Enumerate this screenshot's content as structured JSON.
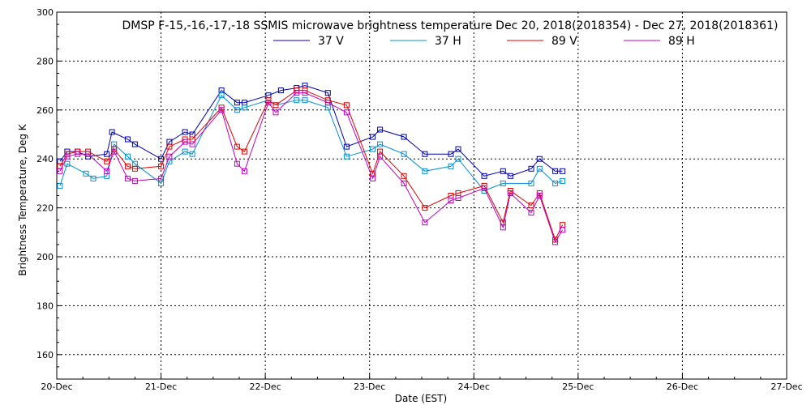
{
  "chart_data": {
    "type": "line",
    "title": "DMSP F-15,-16,-17,-18 SSMIS microwave brightness temperature Dec 20, 2018(2018354) - Dec 27, 2018(2018361)",
    "xlabel": "Date (EST)",
    "ylabel": "Brightness Temperature, Deg K",
    "xlim": [
      0,
      7
    ],
    "ylim": [
      150,
      300
    ],
    "x_ticks": [
      {
        "value": 0,
        "label": "20-Dec"
      },
      {
        "value": 1,
        "label": "21-Dec"
      },
      {
        "value": 2,
        "label": "22-Dec"
      },
      {
        "value": 3,
        "label": "23-Dec"
      },
      {
        "value": 4,
        "label": "24-Dec"
      },
      {
        "value": 5,
        "label": "25-Dec"
      },
      {
        "value": 6,
        "label": "26-Dec"
      },
      {
        "value": 7,
        "label": "27-Dec"
      }
    ],
    "y_ticks": [
      160,
      180,
      200,
      220,
      240,
      260,
      280,
      300
    ],
    "y_tick_labels": [
      "160",
      "180",
      "200",
      "220",
      "240",
      "260",
      "280",
      "300"
    ],
    "grid": true,
    "legend_position": "top",
    "series": [
      {
        "name": "37 V",
        "color": "#0000b0",
        "x": [
          0.03,
          0.1,
          0.2,
          0.3,
          0.48,
          0.53,
          0.68,
          0.75,
          1.0,
          1.08,
          1.23,
          1.3,
          1.58,
          1.73,
          1.8,
          2.03,
          2.15,
          2.3,
          2.38,
          2.6,
          2.78,
          3.03,
          3.1,
          3.33,
          3.53,
          3.78,
          3.85,
          4.1,
          4.28,
          4.35,
          4.55,
          4.63,
          4.78,
          4.85
        ],
        "y": [
          239,
          243,
          243,
          241,
          242,
          251,
          248,
          246,
          240,
          247,
          251,
          250,
          268,
          263,
          263,
          266,
          268,
          269,
          270,
          267,
          245,
          249,
          252,
          249,
          242,
          242,
          244,
          233,
          235,
          233,
          236,
          240,
          235,
          235
        ]
      },
      {
        "name": "37 H",
        "color": "#0090d0",
        "x": [
          0.03,
          0.1,
          0.28,
          0.35,
          0.48,
          0.55,
          0.68,
          0.75,
          1.0,
          1.08,
          1.23,
          1.3,
          1.58,
          1.73,
          1.8,
          2.03,
          2.1,
          2.3,
          2.38,
          2.6,
          2.78,
          3.03,
          3.1,
          3.33,
          3.53,
          3.78,
          3.85,
          4.1,
          4.28,
          4.55,
          4.63,
          4.78,
          4.85
        ],
        "y": [
          229,
          238,
          234,
          232,
          233,
          246,
          241,
          238,
          230,
          239,
          243,
          242,
          266,
          260,
          261,
          264,
          262,
          264,
          264,
          261,
          241,
          244,
          246,
          242,
          235,
          237,
          240,
          227,
          230,
          230,
          236,
          230,
          231
        ]
      },
      {
        "name": "89 V",
        "color": "#e00000",
        "x": [
          0.03,
          0.1,
          0.2,
          0.3,
          0.48,
          0.55,
          0.68,
          0.75,
          1.0,
          1.08,
          1.23,
          1.3,
          1.58,
          1.73,
          1.8,
          2.03,
          2.1,
          2.3,
          2.38,
          2.6,
          2.78,
          3.03,
          3.1,
          3.33,
          3.53,
          3.78,
          3.85,
          4.1,
          4.28,
          4.35,
          4.55,
          4.63,
          4.78,
          4.85
        ],
        "y": [
          237,
          242,
          243,
          243,
          239,
          244,
          237,
          236,
          237,
          245,
          248,
          248,
          261,
          245,
          243,
          264,
          262,
          268,
          268,
          264,
          262,
          234,
          243,
          233,
          220,
          225,
          226,
          229,
          214,
          227,
          221,
          226,
          207,
          213
        ]
      },
      {
        "name": "89 H",
        "color": "#c000c0",
        "x": [
          0.03,
          0.1,
          0.2,
          0.3,
          0.48,
          0.55,
          0.68,
          0.75,
          1.0,
          1.08,
          1.23,
          1.3,
          1.58,
          1.73,
          1.8,
          2.03,
          2.1,
          2.3,
          2.38,
          2.6,
          2.78,
          3.03,
          3.1,
          3.33,
          3.53,
          3.78,
          3.85,
          4.1,
          4.28,
          4.35,
          4.55,
          4.63,
          4.78,
          4.85
        ],
        "y": [
          235,
          241,
          242,
          242,
          235,
          243,
          232,
          231,
          232,
          241,
          247,
          246,
          260,
          238,
          235,
          263,
          259,
          267,
          267,
          263,
          259,
          232,
          241,
          230,
          214,
          223,
          224,
          228,
          212,
          226,
          218,
          225,
          206,
          211
        ]
      }
    ]
  }
}
